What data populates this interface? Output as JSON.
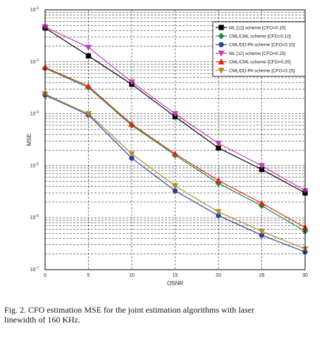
{
  "chart_data": {
    "type": "line",
    "xlabel": "OSNR",
    "ylabel": "MSE",
    "xlim": [
      0,
      30
    ],
    "ylim_exponent": [
      -7,
      -2
    ],
    "yscale": "log",
    "grid": "dashed",
    "legend_position": "top-right",
    "x": [
      0,
      5,
      10,
      15,
      20,
      25,
      30
    ],
    "x_ticks": [
      "0",
      "5",
      "10",
      "15",
      "20",
      "25",
      "30"
    ],
    "y_ticks": [
      {
        "base": "10",
        "exp": "-2"
      },
      {
        "base": "10",
        "exp": "-3"
      },
      {
        "base": "10",
        "exp": "-4"
      },
      {
        "base": "10",
        "exp": "-5"
      },
      {
        "base": "10",
        "exp": "-6"
      },
      {
        "base": "10",
        "exp": "-7"
      }
    ],
    "series": [
      {
        "name": "ML [12] scheme [CFO=0.10]",
        "color": "#000000",
        "marker": "square",
        "values": [
          0.0045,
          0.0013,
          0.00037,
          8.8e-05,
          2.2e-05,
          8.5e-06,
          3e-06
        ]
      },
      {
        "name": "CML/CML scheme [CFO=0.10]",
        "color": "#1e8a3a",
        "marker": "diamond",
        "values": [
          0.00075,
          0.00032,
          6e-05,
          1.6e-05,
          4.6e-06,
          1.7e-06,
          5.5e-07
        ]
      },
      {
        "name": "CML/DD-PA scheme [CFO=0.10]",
        "color": "#2c3f9a",
        "marker": "circle",
        "values": [
          0.00023,
          9.5e-05,
          1.4e-05,
          3.3e-06,
          1.1e-06,
          4.6e-07,
          2.2e-07
        ]
      },
      {
        "name": "ML [12] scheme [CFO=0.25]",
        "color": "#c53ab8",
        "marker": "triangle-down",
        "values": [
          0.0047,
          0.0019,
          0.00041,
          0.0001,
          2.7e-05,
          1e-05,
          3.3e-06
        ]
      },
      {
        "name": "CML/CML scheme [CFO=0.25]",
        "color": "#d8281b",
        "marker": "triangle-up",
        "values": [
          0.00078,
          0.00034,
          6.3e-05,
          1.7e-05,
          5.2e-06,
          1.9e-06,
          6.5e-07
        ]
      },
      {
        "name": "CML/DD-PA scheme [CFO=0.25]",
        "color": "#b8862b",
        "marker": "triangle-down",
        "values": [
          0.00024,
          0.0001,
          1.7e-05,
          4.1e-06,
          1.3e-06,
          5.5e-07,
          2.5e-07
        ]
      }
    ]
  },
  "caption": {
    "line1": "Fig. 2.  CFO estimation MSE for the joint estimation algorithms with laser",
    "line2": "linewidth of 160 KHz."
  }
}
